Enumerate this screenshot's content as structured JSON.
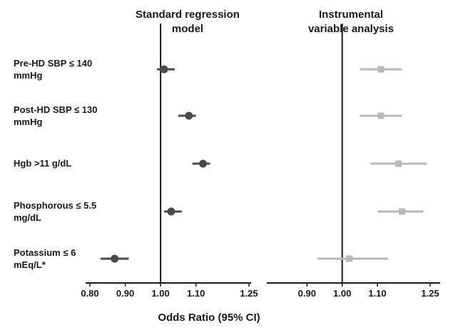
{
  "chart_data": {
    "type": "forest",
    "xlabel": "Odds Ratio (95% CI)",
    "rows": [
      {
        "label": [
          "Pre-HD SBP ≤ 140",
          "mmHg"
        ]
      },
      {
        "label": [
          "Post-HD SBP ≤ 130",
          "mmHg"
        ]
      },
      {
        "label": [
          "Hgb >11 g/dL"
        ]
      },
      {
        "label": [
          "Phosphorous ≤ 5.5",
          "mg/dL"
        ]
      },
      {
        "label": [
          "Potassium ≤ 6",
          "mEq/L*"
        ]
      }
    ],
    "panels": [
      {
        "title": [
          "Standard regression",
          "model"
        ],
        "xlim": [
          0.8,
          1.25
        ],
        "ticks": [
          0.8,
          0.9,
          1.0,
          1.1,
          1.25
        ],
        "tick_labels": [
          "0.80",
          "0.90",
          "1.00",
          "1.10",
          "1.25"
        ],
        "reference": 1.0,
        "marker": "circle",
        "color": "#4a4a4a",
        "estimates": [
          {
            "or": 1.01,
            "lo": 0.99,
            "hi": 1.04
          },
          {
            "or": 1.08,
            "lo": 1.05,
            "hi": 1.1
          },
          {
            "or": 1.12,
            "lo": 1.09,
            "hi": 1.14
          },
          {
            "or": 1.03,
            "lo": 1.01,
            "hi": 1.06
          },
          {
            "or": 0.87,
            "lo": 0.83,
            "hi": 0.91
          }
        ]
      },
      {
        "title": [
          "Instrumental",
          "variable analysis"
        ],
        "xlim": [
          0.8,
          1.25
        ],
        "ticks": [
          0.9,
          1.0,
          1.1,
          1.25
        ],
        "tick_labels": [
          "0.90",
          "1.00",
          "1.10",
          "1.25"
        ],
        "reference": 1.0,
        "marker": "square",
        "color": "#b8b8b8",
        "estimates": [
          {
            "or": 1.11,
            "lo": 1.05,
            "hi": 1.17
          },
          {
            "or": 1.11,
            "lo": 1.05,
            "hi": 1.17
          },
          {
            "or": 1.16,
            "lo": 1.08,
            "hi": 1.24
          },
          {
            "or": 1.17,
            "lo": 1.1,
            "hi": 1.23
          },
          {
            "or": 1.02,
            "lo": 0.93,
            "hi": 1.13
          }
        ]
      }
    ]
  }
}
